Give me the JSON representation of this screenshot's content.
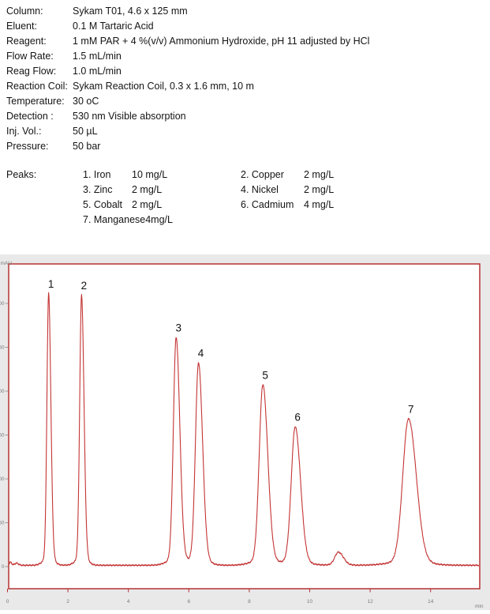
{
  "method": {
    "parameters": [
      {
        "label": "Column:",
        "value": "Sykam T01, 4.6 x 125 mm"
      },
      {
        "label": "Eluent:",
        "value": "0.1 M Tartaric Acid"
      },
      {
        "label": "Reagent:",
        "value": "1 mM PAR + 4 %(v/v) Ammonium Hydroxide, pH 11 adjusted by HCl"
      },
      {
        "label": "Flow Rate:",
        "value": "1.5 mL/min"
      },
      {
        "label": "Reag Flow:",
        "value": "1.0 mL/min"
      },
      {
        "label": "Reaction Coil:",
        "value": "Sykam Reaction Coil, 0.3 x 1.6 mm, 10 m"
      },
      {
        "label": "Temperature:",
        "value": "30 oC"
      },
      {
        "label": "Detection :",
        "value": "530 nm Visible absorption"
      },
      {
        "label": "Inj. Vol.:",
        "value": "50 µL"
      },
      {
        "label": "Pressure:",
        "value": "50 bar"
      }
    ],
    "peaks_label": "Peaks:",
    "peaks_col1": [
      {
        "name": "1. Iron",
        "conc": "10 mg/L"
      },
      {
        "name": "3. Zinc",
        "conc": "2 mg/L"
      },
      {
        "name": "5. Cobalt",
        "conc": "2 mg/L"
      },
      {
        "name": "7. Manganese",
        "conc": "4mg/L"
      }
    ],
    "peaks_col2": [
      {
        "name": "2. Copper",
        "conc": "2 mg/L"
      },
      {
        "name": "4. Nickel",
        "conc": "2 mg/L"
      },
      {
        "name": "6. Cadmium",
        "conc": "4 mg/L"
      }
    ]
  },
  "chart_data": {
    "type": "line",
    "kind": "chromatogram",
    "title": "",
    "xlabel": "min",
    "ylabel": "mAU",
    "x_ticks": [
      0,
      2,
      4,
      6,
      8,
      10,
      12,
      14
    ],
    "y_ticks": [
      0,
      50,
      100,
      150,
      200,
      250,
      300
    ],
    "x_range": [
      0,
      15.6
    ],
    "y_range": [
      -25,
      345
    ],
    "grid": false,
    "legend": false,
    "baseline_mau": 1.5,
    "peaks": [
      {
        "label": "1",
        "analyte": "Iron",
        "time_min": 1.36,
        "height_mau": 310,
        "sigma_min": 0.055
      },
      {
        "label": "2",
        "analyte": "Copper",
        "time_min": 2.45,
        "height_mau": 308,
        "sigma_min": 0.06
      },
      {
        "label": "3",
        "analyte": "Zinc",
        "time_min": 5.58,
        "height_mau": 260,
        "sigma_min": 0.09
      },
      {
        "label": "4",
        "analyte": "Nickel",
        "time_min": 6.32,
        "height_mau": 231,
        "sigma_min": 0.1
      },
      {
        "label": "5",
        "analyte": "Cobalt",
        "time_min": 8.45,
        "height_mau": 206,
        "sigma_min": 0.12
      },
      {
        "label": "6",
        "analyte": "Cadmium",
        "time_min": 9.52,
        "height_mau": 158,
        "sigma_min": 0.13
      },
      {
        "label": "",
        "analyte": "",
        "time_min": 10.95,
        "height_mau": 15,
        "sigma_min": 0.12
      },
      {
        "label": "7",
        "analyte": "Manganese",
        "time_min": 13.27,
        "height_mau": 167,
        "sigma_min": 0.19
      }
    ],
    "injection_artifacts": [
      {
        "time_min": 0.1,
        "height_mau": 3.5,
        "sigma_min": 0.04
      },
      {
        "time_min": 0.3,
        "height_mau": 2.5,
        "sigma_min": 0.06
      }
    ],
    "colors": {
      "trace": "#c43434",
      "plot_border": "#b63232",
      "panel_bg": "#e9e9e9",
      "plot_bg": "#ffffff",
      "tick_text": "#7a7a7a",
      "tick_mark": "#888888",
      "peak_label": "#111111"
    }
  }
}
